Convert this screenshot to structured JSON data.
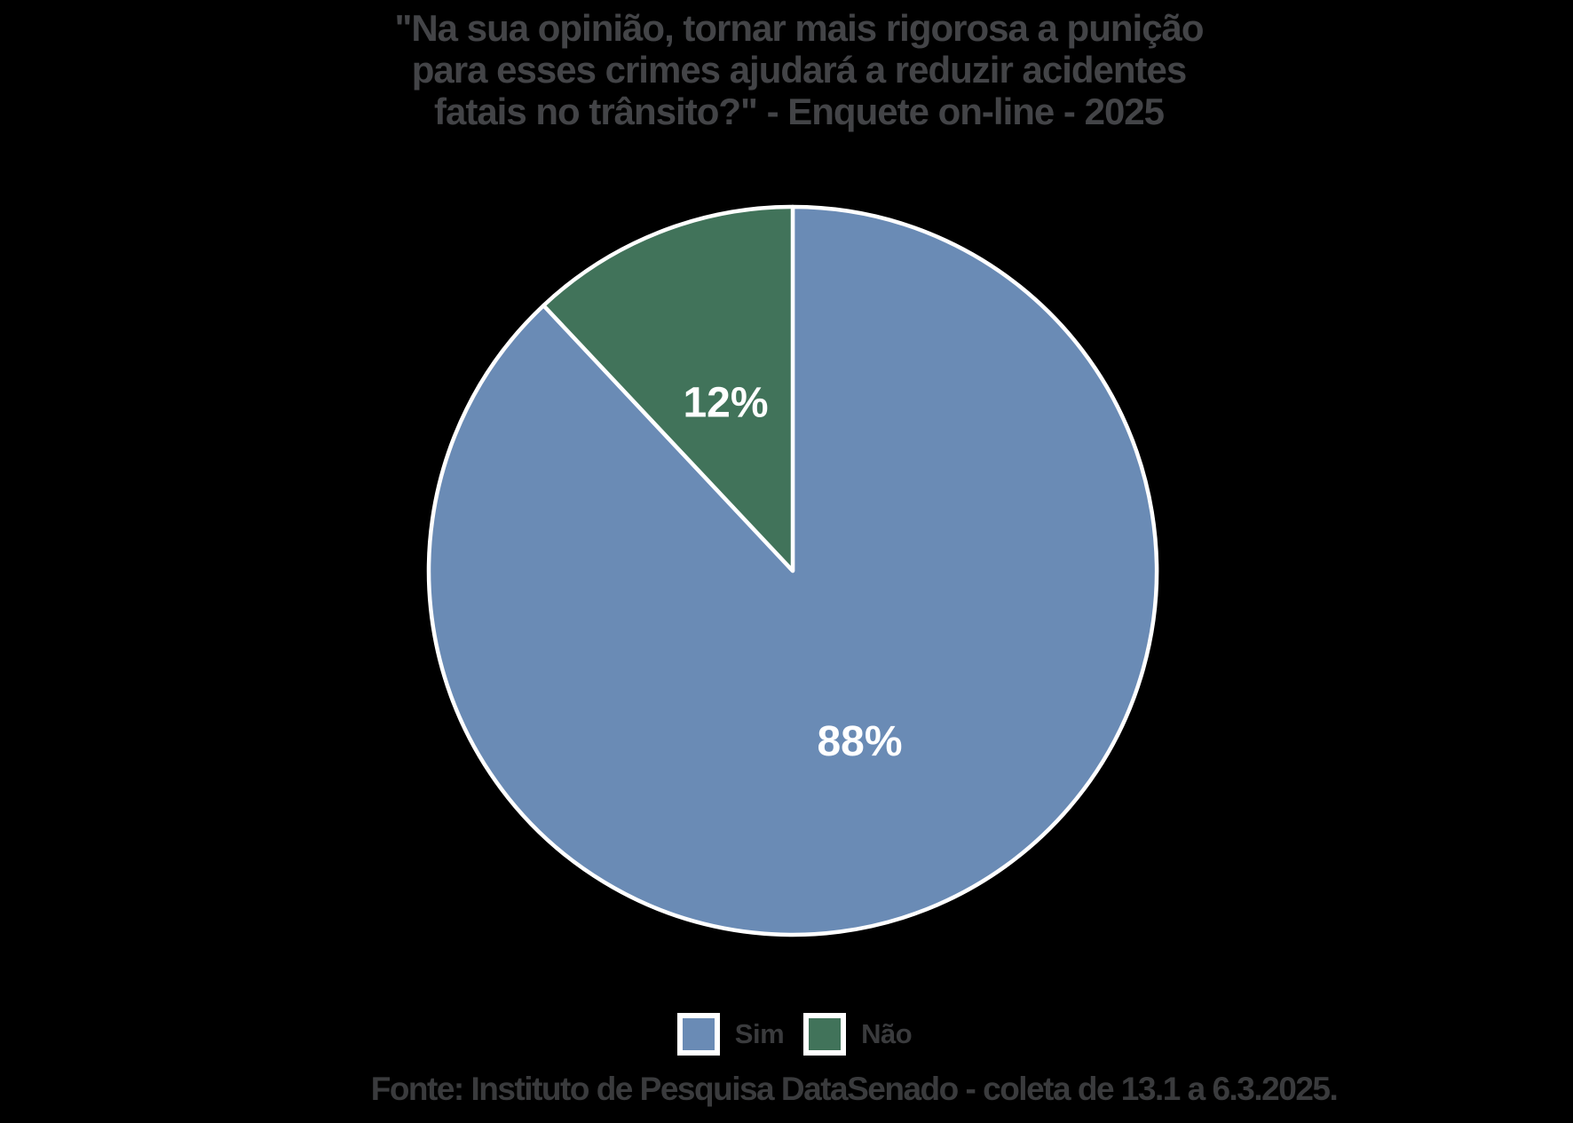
{
  "page": {
    "background_color": "#000000"
  },
  "title": {
    "lines": [
      "\"Na sua opinião, tornar mais rigorosa a punição",
      "para esses crimes ajudará a reduzir acidentes",
      "fatais no trânsito?\" - Enquete on-line - 2025"
    ],
    "color": "#434447"
  },
  "chart_data": {
    "type": "pie",
    "title": "\"Na sua opinião, tornar mais rigorosa a punição para esses crimes ajudará a reduzir acidentes fatais no trânsito?\" - Enquete on-line - 2025",
    "categories": [
      "Sim",
      "Não"
    ],
    "values": [
      88,
      12
    ],
    "slice_labels": [
      "88%",
      "12%"
    ],
    "colors": [
      "#6A8BB5",
      "#41735A"
    ],
    "slice_border_color": "#FFFFFF",
    "label_color": "#FFFFFF",
    "start_angle_deg": 0,
    "direction": "clockwise",
    "legend_position": "bottom",
    "source": "Fonte: Instituto de Pesquisa DataSenado - coleta de 13.1 a 6.3.2025."
  },
  "legend": {
    "items": [
      {
        "label": "Sim",
        "color": "#6A8BB5"
      },
      {
        "label": "Não",
        "color": "#41735A"
      }
    ]
  },
  "footer": {
    "text": "Fonte: Instituto de Pesquisa DataSenado - coleta de 13.1 a 6.3.2025.",
    "color": "#3a3b3d"
  }
}
